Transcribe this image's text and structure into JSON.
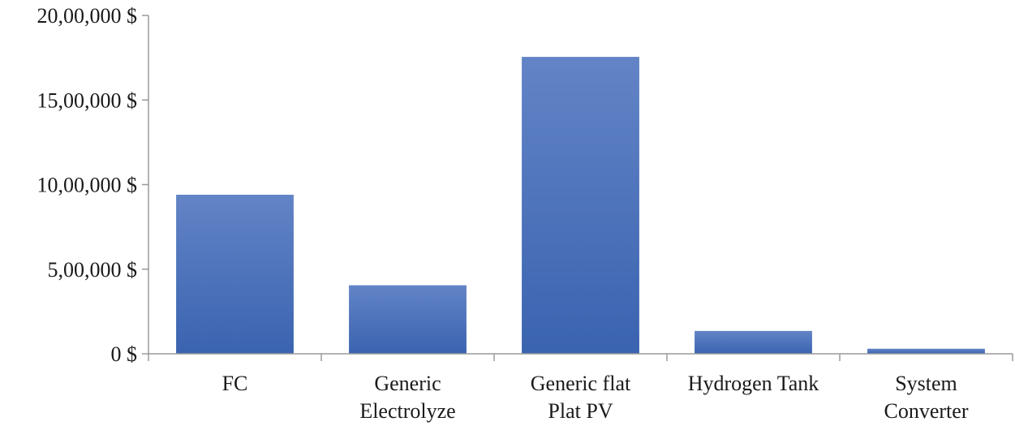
{
  "chart_data": {
    "type": "bar",
    "categories": [
      [
        "FC"
      ],
      [
        "Generic",
        "Electrolyze"
      ],
      [
        "Generic flat",
        "Plat PV"
      ],
      [
        "Hydrogen Tank"
      ],
      [
        "System",
        "Converter"
      ]
    ],
    "values": [
      940000,
      405000,
      1755000,
      135000,
      30000
    ],
    "ylim": [
      0,
      2000000
    ],
    "yticks": [
      0,
      500000,
      1000000,
      1500000,
      2000000
    ],
    "ytick_labels": [
      "0 $",
      "5,00,000 $",
      "10,00,000 $",
      "15,00,000 $",
      "20,00,000 $"
    ],
    "title": "",
    "xlabel": "",
    "ylabel": "",
    "grid": false,
    "bar_color_top": "#6384c6",
    "bar_color_bottom": "#3a63b0"
  }
}
